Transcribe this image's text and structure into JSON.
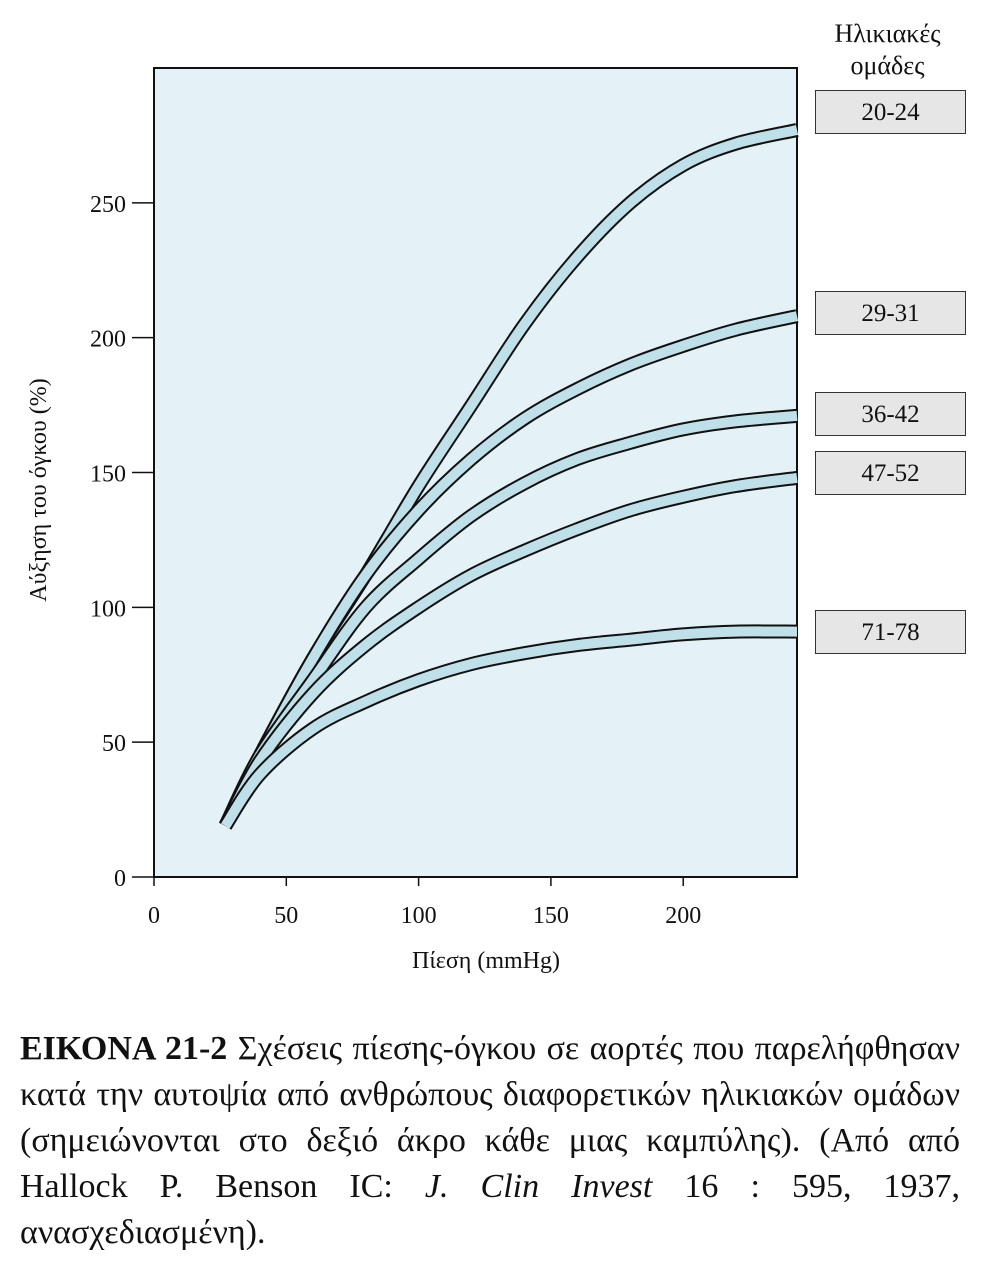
{
  "chart_data": {
    "type": "line",
    "xlabel": "Πίεση (mmHg)",
    "ylabel": "Αύξηση του όγκου (%)",
    "xlim": [
      0,
      243
    ],
    "ylim": [
      0,
      300
    ],
    "x_ticks": [
      0,
      50,
      100,
      150,
      200
    ],
    "y_ticks": [
      0,
      50,
      100,
      150,
      200,
      250
    ],
    "plot_background": "#e4f1f6",
    "band_fill": "#bfdfe9",
    "legend_title": "Ηλικιακές ομάδες",
    "series": [
      {
        "name": "20-24",
        "x": [
          27,
          40,
          60,
          80,
          100,
          120,
          140,
          160,
          180,
          200,
          220,
          243
        ],
        "y": [
          19,
          45,
          81,
          112,
          145,
          175,
          205,
          230,
          250,
          264,
          272,
          277
        ]
      },
      {
        "name": "29-31",
        "x": [
          27,
          40,
          60,
          80,
          100,
          120,
          140,
          160,
          180,
          200,
          220,
          243
        ],
        "y": [
          19,
          45,
          81,
          112,
          136,
          155,
          170,
          181,
          190,
          197,
          203,
          208
        ]
      },
      {
        "name": "36-42",
        "x": [
          27,
          40,
          60,
          80,
          100,
          120,
          140,
          160,
          180,
          200,
          220,
          243
        ],
        "y": [
          19,
          45,
          73,
          100,
          118,
          134,
          146,
          155,
          161,
          166,
          169,
          171
        ]
      },
      {
        "name": "47-52",
        "x": [
          27,
          40,
          60,
          80,
          100,
          120,
          140,
          160,
          180,
          200,
          220,
          243
        ],
        "y": [
          19,
          43,
          68,
          86,
          100,
          112,
          121,
          129,
          136,
          141,
          145,
          148
        ]
      },
      {
        "name": "71-78",
        "x": [
          27,
          40,
          60,
          80,
          100,
          120,
          140,
          160,
          180,
          200,
          220,
          243
        ],
        "y": [
          19,
          38,
          55,
          65,
          73,
          79,
          83,
          86,
          88,
          90,
          91,
          91
        ]
      }
    ]
  },
  "caption": {
    "label": "ΕΙΚΟΝΑ 21-2",
    "text_1": " Σχέσεις πίεσης-όγκου σε αορτές που παρελήφθησαν κατά την αυτοψία από ανθρώπους διαφορετικών ηλικιακών ομάδων (σημειώνονται στο δεξιό άκρο κάθε μιας καμπύλης). (Από από Hallock P. Benson IC: ",
    "journal": "J. Clin Invest",
    "text_2": " 16 : 595, 1937, ανασχεδιασμένη)."
  }
}
